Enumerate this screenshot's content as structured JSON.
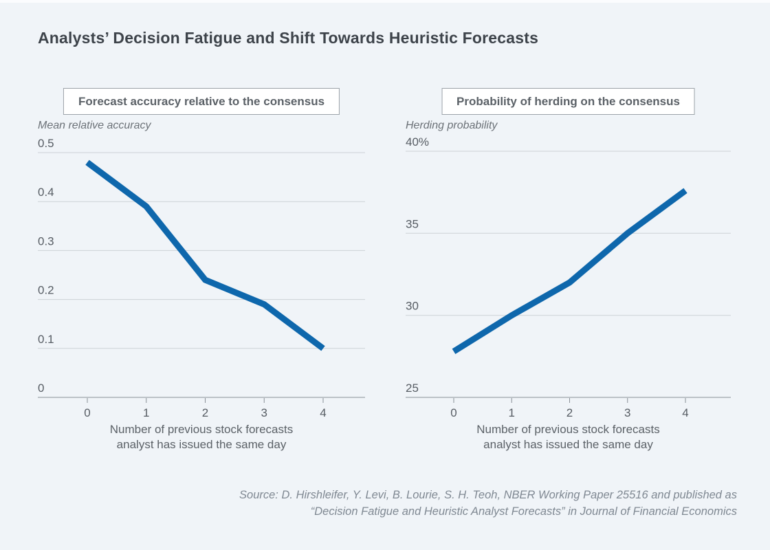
{
  "page": {
    "title": "Analysts’ Decision Fatigue and Shift Towards Heuristic Forecasts",
    "source_line1": "Source: D. Hirshleifer, Y. Levi, B. Lourie, S. H. Teoh, NBER Working Paper 25516 and published as",
    "source_line2": "“Decision Fatigue and Heuristic Analyst Forecasts” in Journal of Financial Economics"
  },
  "colors": {
    "line": "#0e67ac",
    "background": "#f0f4f8",
    "gridline": "#ccd1d6",
    "axis": "#898f96"
  },
  "chart_data": [
    {
      "type": "line",
      "title": "Forecast accuracy relative to the consensus",
      "unit_label": "Mean relative accuracy",
      "x": [
        0,
        1,
        2,
        3,
        4
      ],
      "x_tick_labels": [
        "0",
        "1",
        "2",
        "3",
        "4"
      ],
      "values": [
        0.48,
        0.39,
        0.24,
        0.19,
        0.1
      ],
      "ylim": [
        0,
        0.5
      ],
      "y_ticks": [
        {
          "label": "0.5",
          "value": 0.5
        },
        {
          "label": "0.4",
          "value": 0.4
        },
        {
          "label": "0.3",
          "value": 0.3
        },
        {
          "label": "0.2",
          "value": 0.2
        },
        {
          "label": "0.1",
          "value": 0.1
        },
        {
          "label": "0",
          "value": 0
        }
      ],
      "xlabel_line1": "Number of previous stock forecasts",
      "xlabel_line2": "analyst has issued the same day",
      "grid": true,
      "legend": "none"
    },
    {
      "type": "line",
      "title": "Probability of herding on the consensus",
      "unit_label": "Herding probability",
      "x": [
        0,
        1,
        2,
        3,
        4
      ],
      "x_tick_labels": [
        "0",
        "1",
        "2",
        "3",
        "4"
      ],
      "values": [
        27.8,
        30.0,
        32.0,
        35.0,
        37.6
      ],
      "ylim": [
        25,
        40
      ],
      "y_ticks": [
        {
          "label": "40%",
          "value": 40
        },
        {
          "label": "35",
          "value": 35
        },
        {
          "label": "30",
          "value": 30
        },
        {
          "label": "25",
          "value": 25
        }
      ],
      "xlabel_line1": "Number of previous stock forecasts",
      "xlabel_line2": "analyst has issued the same day",
      "grid": true,
      "legend": "none"
    }
  ]
}
